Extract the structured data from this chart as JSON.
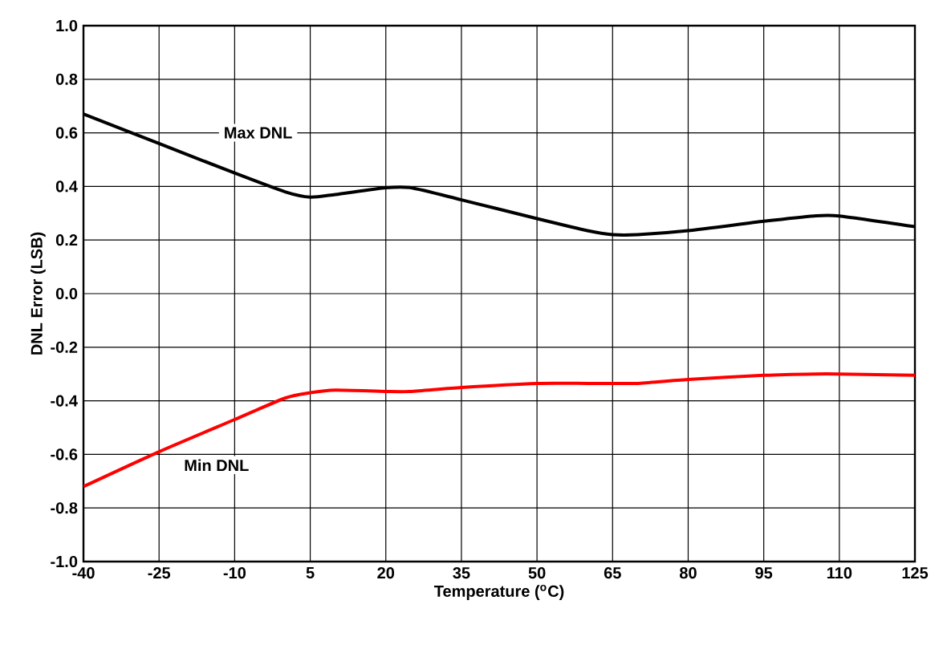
{
  "chart_data": {
    "type": "line",
    "xlabel": "Temperature ($^{o}$C)",
    "ylabel": "DNL Error (LSB)",
    "x": [
      -40,
      -25,
      -10,
      0,
      5,
      10,
      20,
      25,
      35,
      50,
      60,
      65,
      70,
      80,
      95,
      105,
      110,
      125
    ],
    "series": [
      {
        "name": "Max DNL",
        "color": "#000000",
        "values": [
          0.67,
          0.56,
          0.45,
          0.38,
          0.36,
          0.37,
          0.395,
          0.395,
          0.35,
          0.28,
          0.235,
          0.22,
          0.22,
          0.235,
          0.27,
          0.29,
          0.29,
          0.25
        ]
      },
      {
        "name": "Min DNL",
        "color": "#ff0000",
        "values": [
          -0.72,
          -0.59,
          -0.47,
          -0.39,
          -0.37,
          -0.36,
          -0.365,
          -0.365,
          -0.35,
          -0.335,
          -0.335,
          -0.335,
          -0.335,
          -0.32,
          -0.305,
          -0.3,
          -0.3,
          -0.305
        ]
      }
    ],
    "xlim": [
      -40,
      125
    ],
    "xticks": [
      -40,
      -25,
      -10,
      5,
      20,
      35,
      50,
      65,
      80,
      95,
      110,
      125
    ],
    "ylim": [
      -1.0,
      1.0
    ],
    "yticks": [
      {
        "value": -1.0,
        "label": "-1.0"
      },
      {
        "value": -0.8,
        "label": "-0.8"
      },
      {
        "value": -0.6,
        "label": "-0.6"
      },
      {
        "value": -0.4,
        "label": "-0.4"
      },
      {
        "value": -0.2,
        "label": "-0.2"
      },
      {
        "value": 0.0,
        "label": "0.0"
      },
      {
        "value": 0.2,
        "label": "0.2"
      },
      {
        "value": 0.4,
        "label": "0.4"
      },
      {
        "value": 0.6,
        "label": "0.6"
      },
      {
        "value": 0.8,
        "label": "0.8"
      },
      {
        "value": 1.0,
        "label": "1.0"
      }
    ],
    "grid": true,
    "legend": false,
    "marker": "none",
    "line_style": "solid"
  }
}
